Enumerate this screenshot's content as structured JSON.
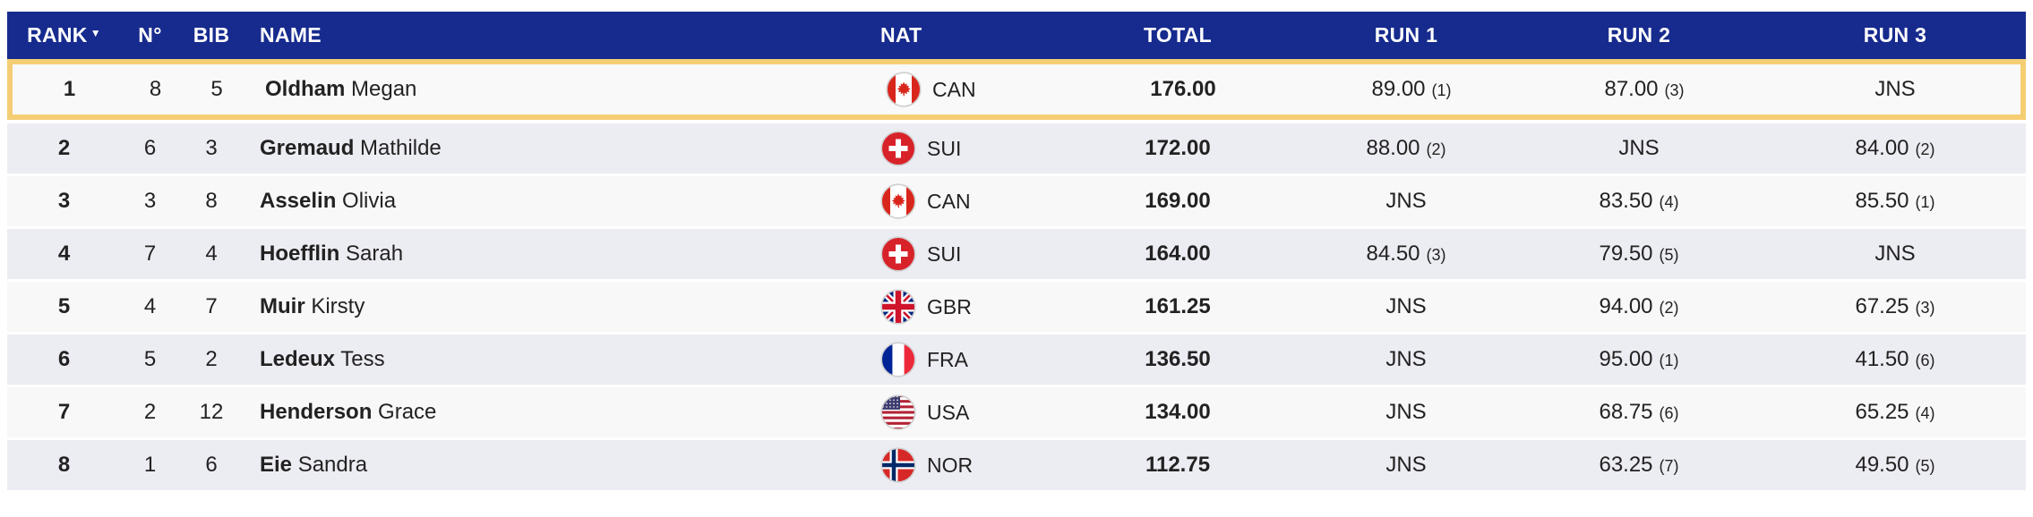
{
  "colors": {
    "header_bg": "#172B8E",
    "highlight_border": "#F5CE74",
    "row_bg": "#F8F8F9",
    "row_alt_bg": "#ECECF3",
    "header_text": "#FFFFFF",
    "text": "#222222"
  },
  "icons": {
    "sort_desc": "▼"
  },
  "table": {
    "header": {
      "rank_label": "RANK",
      "no_label": "N°",
      "bib_label": "BIB",
      "name_label": "NAME",
      "nat_label": "NAT",
      "total_label": "TOTAL",
      "run1_label": "RUN 1",
      "run2_label": "RUN 2",
      "run3_label": "RUN 3"
    },
    "rows": [
      {
        "rank": "1",
        "no": "8",
        "bib": "5",
        "last_name": "Oldham",
        "first_name": "Megan",
        "nat": "CAN",
        "total": "176.00",
        "run1": {
          "score": "89.00",
          "pos": "(1)"
        },
        "run2": {
          "score": "87.00",
          "pos": "(3)"
        },
        "run3": {
          "score": "JNS",
          "pos": ""
        },
        "highlighted": true
      },
      {
        "rank": "2",
        "no": "6",
        "bib": "3",
        "last_name": "Gremaud",
        "first_name": "Mathilde",
        "nat": "SUI",
        "total": "172.00",
        "run1": {
          "score": "88.00",
          "pos": "(2)"
        },
        "run2": {
          "score": "JNS",
          "pos": ""
        },
        "run3": {
          "score": "84.00",
          "pos": "(2)"
        },
        "highlighted": false
      },
      {
        "rank": "3",
        "no": "3",
        "bib": "8",
        "last_name": "Asselin",
        "first_name": "Olivia",
        "nat": "CAN",
        "total": "169.00",
        "run1": {
          "score": "JNS",
          "pos": ""
        },
        "run2": {
          "score": "83.50",
          "pos": "(4)"
        },
        "run3": {
          "score": "85.50",
          "pos": "(1)"
        },
        "highlighted": false
      },
      {
        "rank": "4",
        "no": "7",
        "bib": "4",
        "last_name": "Hoefflin",
        "first_name": "Sarah",
        "nat": "SUI",
        "total": "164.00",
        "run1": {
          "score": "84.50",
          "pos": "(3)"
        },
        "run2": {
          "score": "79.50",
          "pos": "(5)"
        },
        "run3": {
          "score": "JNS",
          "pos": ""
        },
        "highlighted": false
      },
      {
        "rank": "5",
        "no": "4",
        "bib": "7",
        "last_name": "Muir",
        "first_name": "Kirsty",
        "nat": "GBR",
        "total": "161.25",
        "run1": {
          "score": "JNS",
          "pos": ""
        },
        "run2": {
          "score": "94.00",
          "pos": "(2)"
        },
        "run3": {
          "score": "67.25",
          "pos": "(3)"
        },
        "highlighted": false
      },
      {
        "rank": "6",
        "no": "5",
        "bib": "2",
        "last_name": "Ledeux",
        "first_name": "Tess",
        "nat": "FRA",
        "total": "136.50",
        "run1": {
          "score": "JNS",
          "pos": ""
        },
        "run2": {
          "score": "95.00",
          "pos": "(1)"
        },
        "run3": {
          "score": "41.50",
          "pos": "(6)"
        },
        "highlighted": false
      },
      {
        "rank": "7",
        "no": "2",
        "bib": "12",
        "last_name": "Henderson",
        "first_name": "Grace",
        "nat": "USA",
        "total": "134.00",
        "run1": {
          "score": "JNS",
          "pos": ""
        },
        "run2": {
          "score": "68.75",
          "pos": "(6)"
        },
        "run3": {
          "score": "65.25",
          "pos": "(4)"
        },
        "highlighted": false
      },
      {
        "rank": "8",
        "no": "1",
        "bib": "6",
        "last_name": "Eie",
        "first_name": "Sandra",
        "nat": "NOR",
        "total": "112.75",
        "run1": {
          "score": "JNS",
          "pos": ""
        },
        "run2": {
          "score": "63.25",
          "pos": "(7)"
        },
        "run3": {
          "score": "49.50",
          "pos": "(5)"
        },
        "highlighted": false
      }
    ]
  }
}
